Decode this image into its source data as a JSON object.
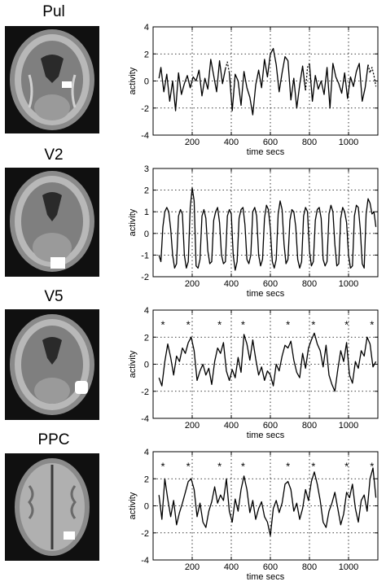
{
  "panels": [
    {
      "title": "Pul"
    },
    {
      "title": "V2"
    },
    {
      "title": "V5"
    },
    {
      "title": "PPC"
    }
  ],
  "chart_data": [
    {
      "type": "line",
      "xlabel": "time secs",
      "ylabel": "activity",
      "xlim": [
        0,
        1150
      ],
      "ylim": [
        -4,
        4
      ],
      "xticks": [
        200,
        400,
        600,
        800,
        1000
      ],
      "yticks": [
        -4,
        -2,
        0,
        2,
        4
      ],
      "grid": true,
      "series": [
        {
          "style": "solid",
          "x": [
            30,
            40,
            55,
            70,
            85,
            100,
            115,
            130,
            145,
            160,
            175,
            190,
            205,
            220,
            235,
            250,
            265,
            280,
            295,
            310,
            325,
            340,
            355,
            370
          ],
          "y": [
            0.2,
            1.0,
            -0.8,
            0.5,
            -1.5,
            0.0,
            -2.2,
            0.6,
            -1.0,
            -0.2,
            0.4,
            -0.5,
            0.3,
            0.0,
            0.8,
            -1.1,
            0.2,
            -0.6,
            1.6,
            0.4,
            -0.8,
            1.5,
            -0.2,
            0.9
          ]
        },
        {
          "style": "dotted",
          "x": [
            370,
            380,
            390
          ],
          "y": [
            0.9,
            1.4,
            0.6
          ]
        },
        {
          "style": "solid",
          "x": [
            390,
            405,
            420,
            435,
            450,
            465,
            480,
            495,
            510,
            525,
            540,
            555,
            570,
            585,
            600,
            615,
            630,
            645,
            660,
            675,
            690,
            705,
            720,
            735,
            750,
            765,
            780
          ],
          "y": [
            0.6,
            -2.2,
            0.5,
            0.0,
            -1.8,
            0.7,
            -0.5,
            -1.2,
            -2.5,
            -0.3,
            0.8,
            -0.5,
            1.6,
            0.3,
            2.0,
            2.4,
            1.2,
            -0.8,
            0.6,
            1.8,
            1.5,
            -1.4,
            0.2,
            -2.0,
            -0.3,
            1.1,
            -0.7
          ]
        },
        {
          "style": "dotted",
          "x": [
            780,
            790,
            800
          ],
          "y": [
            -0.7,
            1.0,
            1.3
          ]
        },
        {
          "style": "solid",
          "x": [
            800,
            815,
            830,
            845,
            860,
            875,
            890,
            905,
            920,
            935,
            950,
            965,
            980,
            995,
            1010,
            1025,
            1040,
            1055,
            1070,
            1085,
            1100
          ],
          "y": [
            1.3,
            -1.5,
            0.4,
            -0.6,
            0.0,
            -1.0,
            1.0,
            -2.0,
            1.3,
            0.3,
            -0.2,
            -0.9,
            0.6,
            -1.3,
            0.3,
            -0.4,
            0.7,
            1.3,
            -1.5,
            -0.5,
            1.2
          ]
        },
        {
          "style": "dotted",
          "x": [
            1100,
            1110,
            1120,
            1130,
            1140
          ],
          "y": [
            1.2,
            0.6,
            1.0,
            0.4,
            -0.4
          ]
        }
      ]
    },
    {
      "type": "line",
      "xlabel": "time secs",
      "ylabel": "activity",
      "xlim": [
        0,
        1150
      ],
      "ylim": [
        -2,
        3
      ],
      "xticks": [
        200,
        400,
        600,
        800,
        1000
      ],
      "yticks": [
        -2,
        -1,
        0,
        1,
        2,
        3
      ],
      "grid": true,
      "series": [
        {
          "style": "solid",
          "x": [
            30,
            40,
            50,
            60,
            70,
            80,
            90,
            100,
            110,
            120,
            130,
            140,
            150,
            160,
            170,
            180,
            190,
            200,
            210,
            220,
            230,
            240,
            250,
            260,
            270,
            280,
            290,
            300,
            310,
            320,
            330,
            340,
            350,
            360,
            370,
            380,
            390,
            400,
            410,
            420,
            430,
            440,
            450,
            460,
            470,
            480,
            490,
            500,
            510,
            520,
            530,
            540,
            550,
            560,
            570,
            580,
            590,
            600,
            610,
            620,
            630,
            640,
            650,
            660,
            670,
            680,
            690,
            700,
            710,
            720,
            730,
            740,
            750,
            760,
            770,
            780,
            790,
            800,
            810,
            820,
            830,
            840,
            850,
            860,
            870,
            880,
            890,
            900,
            910,
            920,
            930,
            940,
            950,
            960,
            970,
            980,
            990,
            1000,
            1010,
            1020,
            1030,
            1040,
            1050,
            1060,
            1070,
            1080,
            1090,
            1100,
            1110,
            1120,
            1130,
            1140
          ],
          "y": [
            -1.0,
            -1.3,
            0.3,
            1.0,
            1.2,
            1.0,
            0.2,
            -1.0,
            -1.6,
            -1.4,
            0.8,
            1.1,
            0.9,
            -1.0,
            -1.6,
            -1.3,
            1.2,
            2.1,
            1.5,
            -1.5,
            -1.6,
            -1.2,
            0.8,
            1.1,
            0.7,
            -0.8,
            -1.4,
            -1.3,
            0.6,
            1.0,
            1.2,
            0.5,
            -1.0,
            -1.4,
            -1.3,
            0.8,
            1.1,
            0.9,
            -1.0,
            -1.7,
            -1.3,
            0.7,
            1.1,
            1.2,
            0.4,
            -1.2,
            -1.4,
            -1.0,
            1.0,
            1.2,
            0.8,
            -1.0,
            -1.5,
            -1.2,
            0.7,
            1.3,
            1.1,
            0.2,
            -1.3,
            -1.6,
            -1.2,
            0.9,
            1.5,
            1.1,
            -0.5,
            -1.4,
            -1.2,
            0.6,
            1.1,
            1.0,
            0.3,
            -1.2,
            -1.6,
            -1.3,
            0.8,
            1.2,
            1.0,
            -0.8,
            -1.5,
            -1.3,
            0.6,
            1.1,
            1.2,
            0.7,
            -1.2,
            -1.5,
            -1.3,
            0.9,
            1.3,
            1.0,
            -0.5,
            -1.5,
            -1.4,
            0.7,
            1.2,
            1.0,
            0.5,
            -1.0,
            -1.6,
            -1.5,
            0.8,
            1.3,
            1.2,
            0.2,
            -1.4,
            -1.6,
            0.9,
            1.6,
            1.4,
            0.9,
            1.0,
            0.3
          ]
        }
      ]
    },
    {
      "type": "line",
      "xlabel": "time secs",
      "ylabel": "activity",
      "xlim": [
        0,
        1150
      ],
      "ylim": [
        -4,
        4
      ],
      "xticks": [
        200,
        400,
        600,
        800,
        1000
      ],
      "yticks": [
        -4,
        -2,
        0,
        2,
        4
      ],
      "grid": true,
      "markers": {
        "symbol": "*",
        "y": 3.0,
        "x": [
          50,
          180,
          340,
          460,
          690,
          820,
          990,
          1120
        ]
      },
      "series": [
        {
          "style": "solid",
          "x": [
            30,
            45,
            60,
            75,
            90,
            105,
            120,
            135,
            150,
            165,
            180,
            195,
            210,
            225,
            240,
            255,
            270,
            285,
            300,
            315,
            330,
            345,
            360,
            375,
            390,
            405,
            420,
            435,
            450,
            465,
            480,
            495,
            510,
            525,
            540,
            555,
            570,
            585,
            600,
            615,
            630,
            645,
            660,
            675,
            690,
            705,
            720,
            735,
            750,
            765,
            780,
            795,
            810,
            825,
            840,
            855,
            870,
            885,
            900,
            915,
            930,
            945,
            960,
            975,
            990,
            1005,
            1020,
            1035,
            1050,
            1065,
            1080,
            1095,
            1110,
            1125,
            1140
          ],
          "y": [
            -1.0,
            -1.6,
            0.2,
            1.5,
            0.5,
            -0.8,
            0.6,
            0.2,
            1.2,
            0.8,
            1.6,
            2.0,
            1.0,
            -1.2,
            -0.5,
            0.0,
            -0.8,
            -0.3,
            -1.5,
            0.2,
            1.2,
            0.8,
            1.6,
            -0.5,
            -1.2,
            -0.4,
            -1.0,
            0.5,
            -0.6,
            2.2,
            1.5,
            0.3,
            1.8,
            0.4,
            -0.8,
            -0.2,
            -1.2,
            -0.5,
            -0.8,
            -1.6,
            0.0,
            -0.5,
            0.6,
            1.4,
            1.2,
            1.7,
            0.3,
            -0.6,
            -1.0,
            0.8,
            -0.3,
            1.2,
            1.8,
            2.3,
            1.5,
            1.0,
            -0.2,
            1.4,
            -0.8,
            -1.5,
            -2.0,
            -0.4,
            1.0,
            0.2,
            1.6,
            -0.8,
            -1.4,
            0.2,
            -0.3,
            1.0,
            0.6,
            2.0,
            1.5,
            -0.2,
            0.2
          ]
        }
      ]
    },
    {
      "type": "line",
      "xlabel": "time secs",
      "ylabel": "activity",
      "xlim": [
        0,
        1150
      ],
      "ylim": [
        -4,
        4
      ],
      "xticks": [
        200,
        400,
        600,
        800,
        1000
      ],
      "yticks": [
        -4,
        -2,
        0,
        2,
        4
      ],
      "grid": true,
      "markers": {
        "symbol": "*",
        "y": 3.0,
        "x": [
          50,
          180,
          340,
          460,
          690,
          820,
          990,
          1120
        ]
      },
      "series": [
        {
          "style": "solid",
          "x": [
            30,
            45,
            60,
            75,
            90,
            105,
            120,
            135,
            150,
            165,
            180,
            195,
            210,
            225,
            240,
            255,
            270,
            285,
            300,
            315,
            330,
            345,
            360,
            375,
            390,
            405,
            420,
            435,
            450,
            465,
            480,
            495,
            510,
            525,
            540,
            555,
            570,
            585,
            600,
            615,
            630,
            645,
            660,
            675,
            690,
            705,
            720,
            735,
            750,
            765,
            780,
            795,
            810,
            825,
            840,
            855,
            870,
            885,
            900,
            915,
            930,
            945,
            960,
            975,
            990,
            1005,
            1020,
            1035,
            1050,
            1065,
            1080,
            1095,
            1110,
            1125,
            1140
          ],
          "y": [
            0.8,
            -1.0,
            2.0,
            0.5,
            -0.8,
            0.4,
            -1.4,
            -0.5,
            0.2,
            1.0,
            1.8,
            2.0,
            1.2,
            -0.8,
            0.2,
            -1.2,
            -1.6,
            -0.4,
            0.3,
            1.4,
            0.2,
            0.8,
            0.4,
            2.0,
            -0.4,
            -1.2,
            0.5,
            -0.4,
            1.2,
            2.2,
            1.2,
            -0.5,
            0.4,
            -1.0,
            -0.2,
            0.3,
            -0.8,
            -1.2,
            -2.2,
            -0.2,
            0.4,
            -0.5,
            0.2,
            1.6,
            1.8,
            1.2,
            -0.4,
            0.2,
            -1.0,
            -0.2,
            1.2,
            0.4,
            1.8,
            2.5,
            1.6,
            0.4,
            -1.2,
            -1.6,
            -0.4,
            0.2,
            1.0,
            -0.2,
            -1.4,
            -0.6,
            1.0,
            0.6,
            1.6,
            -0.2,
            -1.2,
            0.4,
            0.8,
            -0.4,
            2.0,
            2.8,
            0.6
          ]
        }
      ]
    }
  ]
}
